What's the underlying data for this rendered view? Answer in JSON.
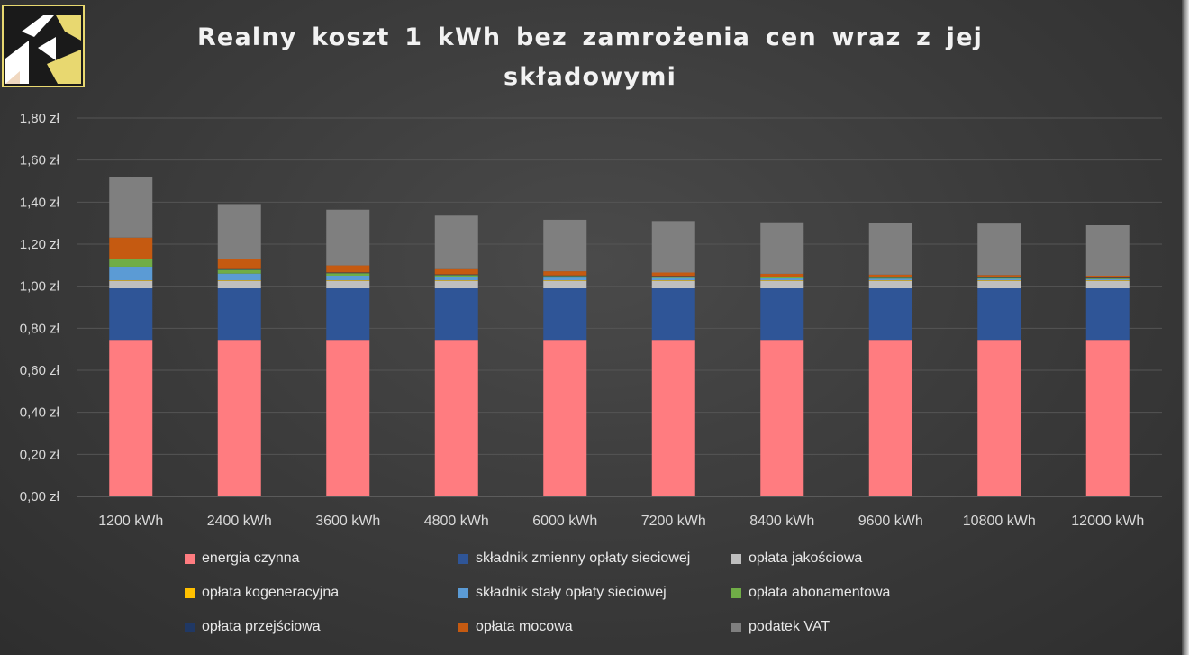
{
  "chart_data": {
    "type": "bar",
    "stacked": true,
    "title": "Realny koszt 1 kWh bez zamrożenia cen wraz z jej składowymi",
    "categories": [
      "1200 kWh",
      "2400 kWh",
      "3600 kWh",
      "4800 kWh",
      "6000 kWh",
      "7200 kWh",
      "8400 kWh",
      "9600 kWh",
      "10800 kWh",
      "12000 kWh"
    ],
    "ylim": [
      0,
      1.8
    ],
    "yticks": [
      "0,00 zł",
      "0,20 zł",
      "0,40 zł",
      "0,60 zł",
      "0,80 zł",
      "1,00 zł",
      "1,20 zł",
      "1,40 zł",
      "1,60 zł",
      "1,80 zł"
    ],
    "grid": true,
    "legend_position": "bottom",
    "series": [
      {
        "name": "energia czynna",
        "color": "#ff7c80",
        "values": [
          0.745,
          0.745,
          0.745,
          0.745,
          0.745,
          0.745,
          0.745,
          0.745,
          0.745,
          0.745
        ]
      },
      {
        "name": "składnik zmienny opłaty sieciowej",
        "color": "#2f5597",
        "values": [
          0.245,
          0.245,
          0.245,
          0.245,
          0.245,
          0.245,
          0.245,
          0.245,
          0.245,
          0.245
        ]
      },
      {
        "name": "opłata jakościowa",
        "color": "#bfbfbf",
        "values": [
          0.035,
          0.035,
          0.035,
          0.035,
          0.035,
          0.035,
          0.035,
          0.035,
          0.035,
          0.035
        ]
      },
      {
        "name": "opłata kogeneracyjna",
        "color": "#ffc000",
        "values": [
          0.003,
          0.003,
          0.003,
          0.003,
          0.003,
          0.003,
          0.003,
          0.003,
          0.003,
          0.003
        ]
      },
      {
        "name": "składnik stały opłaty sieciowej",
        "color": "#5b9bd5",
        "values": [
          0.065,
          0.032,
          0.022,
          0.016,
          0.013,
          0.011,
          0.009,
          0.008,
          0.007,
          0.006
        ]
      },
      {
        "name": "opłata abonamentowa",
        "color": "#70ad47",
        "values": [
          0.035,
          0.018,
          0.012,
          0.009,
          0.007,
          0.006,
          0.005,
          0.004,
          0.004,
          0.003
        ]
      },
      {
        "name": "opłata przejściowa",
        "color": "#203864",
        "values": [
          0.003,
          0.003,
          0.003,
          0.003,
          0.003,
          0.003,
          0.003,
          0.003,
          0.003,
          0.003
        ]
      },
      {
        "name": "opłata mocowa",
        "color": "#c55a11",
        "values": [
          0.1,
          0.05,
          0.034,
          0.025,
          0.02,
          0.017,
          0.014,
          0.012,
          0.011,
          0.01
        ]
      },
      {
        "name": "podatek VAT",
        "color": "#7f7f7f",
        "values": [
          0.29,
          0.26,
          0.265,
          0.255,
          0.245,
          0.245,
          0.245,
          0.245,
          0.245,
          0.24
        ]
      }
    ]
  },
  "legend_order": [
    0,
    1,
    2,
    3,
    4,
    5,
    6,
    7,
    8
  ]
}
